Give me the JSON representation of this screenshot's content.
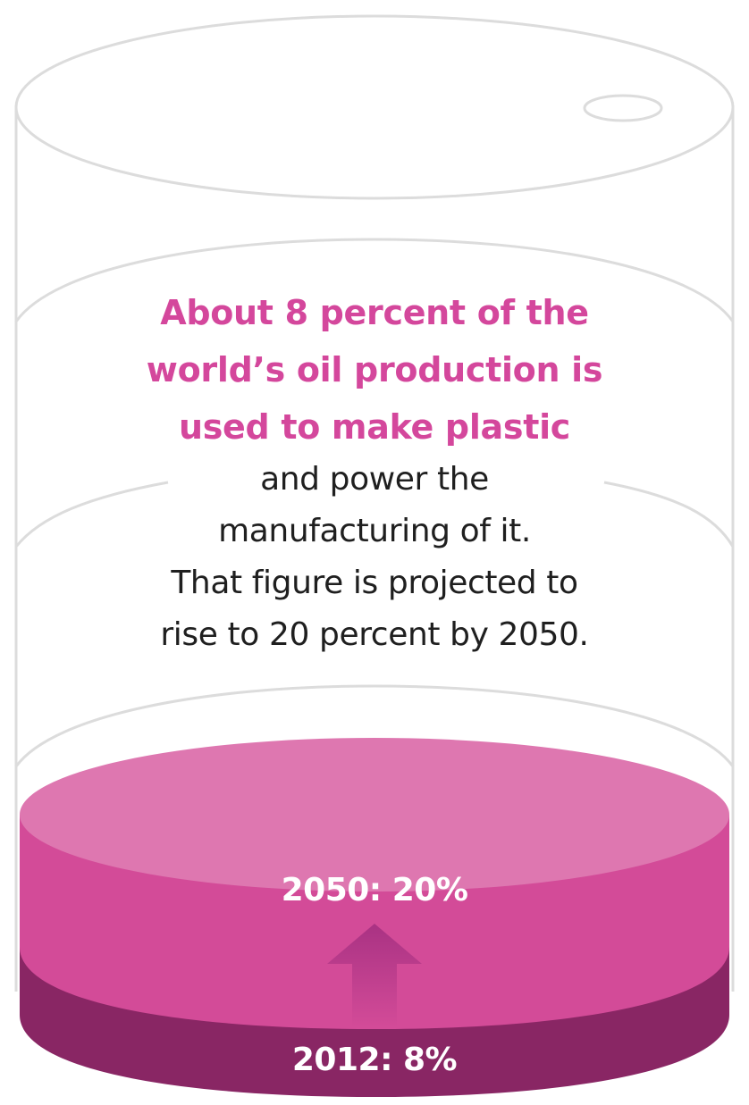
{
  "headline": {
    "lines": [
      "About 8 percent of the",
      "world’s oil production is",
      "used to make plastic"
    ]
  },
  "body": {
    "lines": [
      "and power the",
      "manufacturing of it.",
      "That figure is projected to",
      "rise to 20 percent by 2050."
    ]
  },
  "levels": {
    "label_2050": "2050: 20%",
    "label_2012": "2012: 8%"
  },
  "chart_data": {
    "type": "area",
    "categories": [
      "2012",
      "2050"
    ],
    "values": [
      8,
      20
    ],
    "unit": "%"
  },
  "colors": {
    "accent": "#d4479c",
    "layer_2050": "#d34b98",
    "layer_2050_top": "#de77b0",
    "layer_2012": "#892664",
    "outline": "#dcdcdc"
  }
}
